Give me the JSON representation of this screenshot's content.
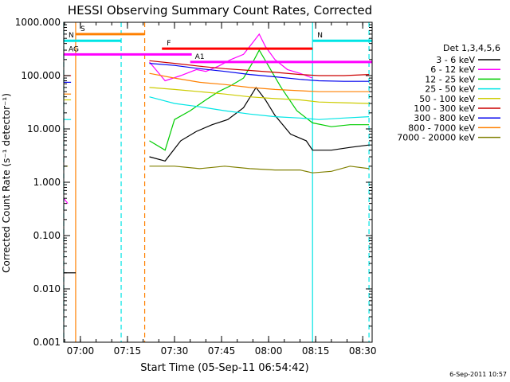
{
  "chart_data": {
    "type": "line",
    "title": "HESSI Observing Summary Count Rates, Corrected",
    "xlabel": "Start Time (05-Sep-11 06:54:42)",
    "ylabel": "Corrected Count Rate (s⁻¹ detector⁻¹)",
    "y_scale": "log",
    "ylim": [
      0.001,
      1000
    ],
    "y_ticks": [
      "1000.000",
      "100.000",
      "10.000",
      "1.000",
      "0.100",
      "0.010",
      "0.001"
    ],
    "x_range_minutes": [
      "06:54:42",
      "08:33:00"
    ],
    "x_ticks": [
      "07:00",
      "07:15",
      "07:30",
      "07:45",
      "08:00",
      "08:15",
      "08:30"
    ],
    "legend_title": "Det 1,3,4,5,6",
    "legend_position": "right",
    "grid": false,
    "series": [
      {
        "name": "3 - 6 keV",
        "color": "#000000",
        "x": [
          "06:54:42",
          "06:58:30",
          "07:22:00",
          "07:27:00",
          "07:32:00",
          "07:37:00",
          "07:42:00",
          "07:47:00",
          "07:52:00",
          "07:56:00",
          "07:59:00",
          "08:02:00",
          "08:07:00",
          "08:12:00",
          "08:14:00",
          "08:20:00",
          "08:26:00",
          "08:32:00"
        ],
        "y": [
          0.02,
          0.02,
          3,
          2.5,
          6,
          9,
          12,
          15,
          25,
          60,
          35,
          18,
          8,
          6,
          4,
          4,
          4.5,
          5
        ]
      },
      {
        "name": "6 - 12 keV",
        "color": "#ff00ff",
        "x": [
          "06:54:42",
          "06:56:00",
          "07:22:00",
          "07:27:00",
          "07:32:00",
          "07:37:00",
          "07:40:00",
          "07:44:00",
          "07:48:00",
          "07:52:00",
          "07:55:00",
          "07:57:00",
          "07:59:00",
          "08:02:00",
          "08:06:00",
          "08:10:00",
          "08:14:00"
        ],
        "y": [
          0.5,
          0.4,
          180,
          80,
          100,
          130,
          120,
          150,
          200,
          250,
          420,
          600,
          350,
          200,
          130,
          110,
          90
        ]
      },
      {
        "name": "12 - 25 keV",
        "color": "#00cc00",
        "x": [
          "07:22:00",
          "07:27:00",
          "07:30:00",
          "07:35:00",
          "07:40:00",
          "07:44:00",
          "07:48:00",
          "07:52:00",
          "07:55:00",
          "07:57:00",
          "08:00:00",
          "08:04:00",
          "08:09:00",
          "08:14:00",
          "08:20:00",
          "08:26:00",
          "08:32:00"
        ],
        "y": [
          6,
          4,
          15,
          22,
          35,
          50,
          65,
          90,
          180,
          300,
          150,
          60,
          22,
          13,
          11,
          12,
          12
        ]
      },
      {
        "name": "25 - 50 keV",
        "color": "#00e5e5",
        "x": [
          "06:54:42",
          "06:57:00",
          "07:22:00",
          "07:30:00",
          "07:38:00",
          "07:46:00",
          "07:54:00",
          "08:02:00",
          "08:10:00",
          "08:16:00",
          "08:24:00",
          "08:32:00"
        ],
        "y": [
          15,
          15,
          40,
          30,
          26,
          22,
          19,
          17,
          16,
          15,
          16,
          17
        ]
      },
      {
        "name": "50 - 100 keV",
        "color": "#cccc00",
        "x": [
          "06:54:42",
          "06:57:00",
          "07:22:00",
          "07:30:00",
          "07:38:00",
          "07:46:00",
          "07:54:00",
          "08:02:00",
          "08:10:00",
          "08:16:00",
          "08:24:00",
          "08:32:00"
        ],
        "y": [
          35,
          35,
          60,
          55,
          50,
          45,
          40,
          37,
          35,
          32,
          31,
          30
        ]
      },
      {
        "name": "100 - 300 keV",
        "color": "#cc0000",
        "x": [
          "06:54:42",
          "06:57:00",
          "07:22:00",
          "07:30:00",
          "07:38:00",
          "07:46:00",
          "07:54:00",
          "08:02:00",
          "08:10:00",
          "08:16:00",
          "08:24:00",
          "08:32:00"
        ],
        "y": [
          100,
          100,
          190,
          170,
          150,
          135,
          125,
          115,
          105,
          100,
          100,
          105
        ]
      },
      {
        "name": "300 - 800 keV",
        "color": "#0000ee",
        "x": [
          "06:54:42",
          "06:57:00",
          "07:22:00",
          "07:30:00",
          "07:38:00",
          "07:46:00",
          "07:54:00",
          "08:02:00",
          "08:10:00",
          "08:16:00",
          "08:24:00",
          "08:32:00"
        ],
        "y": [
          75,
          75,
          170,
          155,
          135,
          120,
          105,
          95,
          85,
          80,
          78,
          78
        ]
      },
      {
        "name": "800 - 7000 keV",
        "color": "#ff8000",
        "x": [
          "06:54:42",
          "06:57:00",
          "07:22:00",
          "07:30:00",
          "07:38:00",
          "07:46:00",
          "07:54:00",
          "08:02:00",
          "08:10:00",
          "08:16:00",
          "08:24:00",
          "08:32:00"
        ],
        "y": [
          45,
          45,
          110,
          90,
          75,
          68,
          60,
          55,
          52,
          50,
          50,
          50
        ]
      },
      {
        "name": "7000 - 20000 keV",
        "color": "#808000",
        "x": [
          "06:54:42",
          "06:56:00",
          "07:22:00",
          "07:30:00",
          "07:38:00",
          "07:46:00",
          "07:54:00",
          "08:02:00",
          "08:10:00",
          "08:14:00",
          "08:20:00",
          "08:26:00",
          "08:32:00"
        ],
        "y": [
          2,
          2,
          2,
          2,
          1.8,
          2,
          1.8,
          1.7,
          1.7,
          1.5,
          1.6,
          2,
          1.8
        ]
      }
    ],
    "annotations": [
      {
        "label": "S",
        "color": "#ff8000",
        "start": "06:58:30",
        "end": "07:20:30",
        "value": 600
      },
      {
        "label": "N",
        "color": "#00e5e5",
        "start": "06:54:42",
        "end": "07:13:00",
        "value": 450
      },
      {
        "label": "N",
        "color": "#00e5e5",
        "start": "08:14:00",
        "end": "08:33:00",
        "value": 450
      },
      {
        "label": "F",
        "color": "#ff0000",
        "start": "07:26:00",
        "end": "08:14:00",
        "value": 320
      },
      {
        "label": "AG",
        "color": "#ff00ff",
        "start": "06:54:42",
        "end": "07:35:30",
        "value": 250
      },
      {
        "label": "A1",
        "color": "#ff00ff",
        "start": "07:35:00",
        "end": "08:33:00",
        "value": 180
      }
    ],
    "vertical_lines": [
      {
        "time": "06:54:42",
        "color": "#00e5e5",
        "style": "dashed"
      },
      {
        "time": "06:58:30",
        "color": "#ff8000",
        "style": "solid"
      },
      {
        "time": "07:13:00",
        "color": "#00e5e5",
        "style": "dashed"
      },
      {
        "time": "07:20:30",
        "color": "#ff8000",
        "style": "dashed"
      },
      {
        "time": "08:14:00",
        "color": "#00e5e5",
        "style": "solid"
      },
      {
        "time": "08:32:00",
        "color": "#00e5e5",
        "style": "dashed"
      }
    ]
  },
  "footer_date": "6-Sep-2011 10:57"
}
